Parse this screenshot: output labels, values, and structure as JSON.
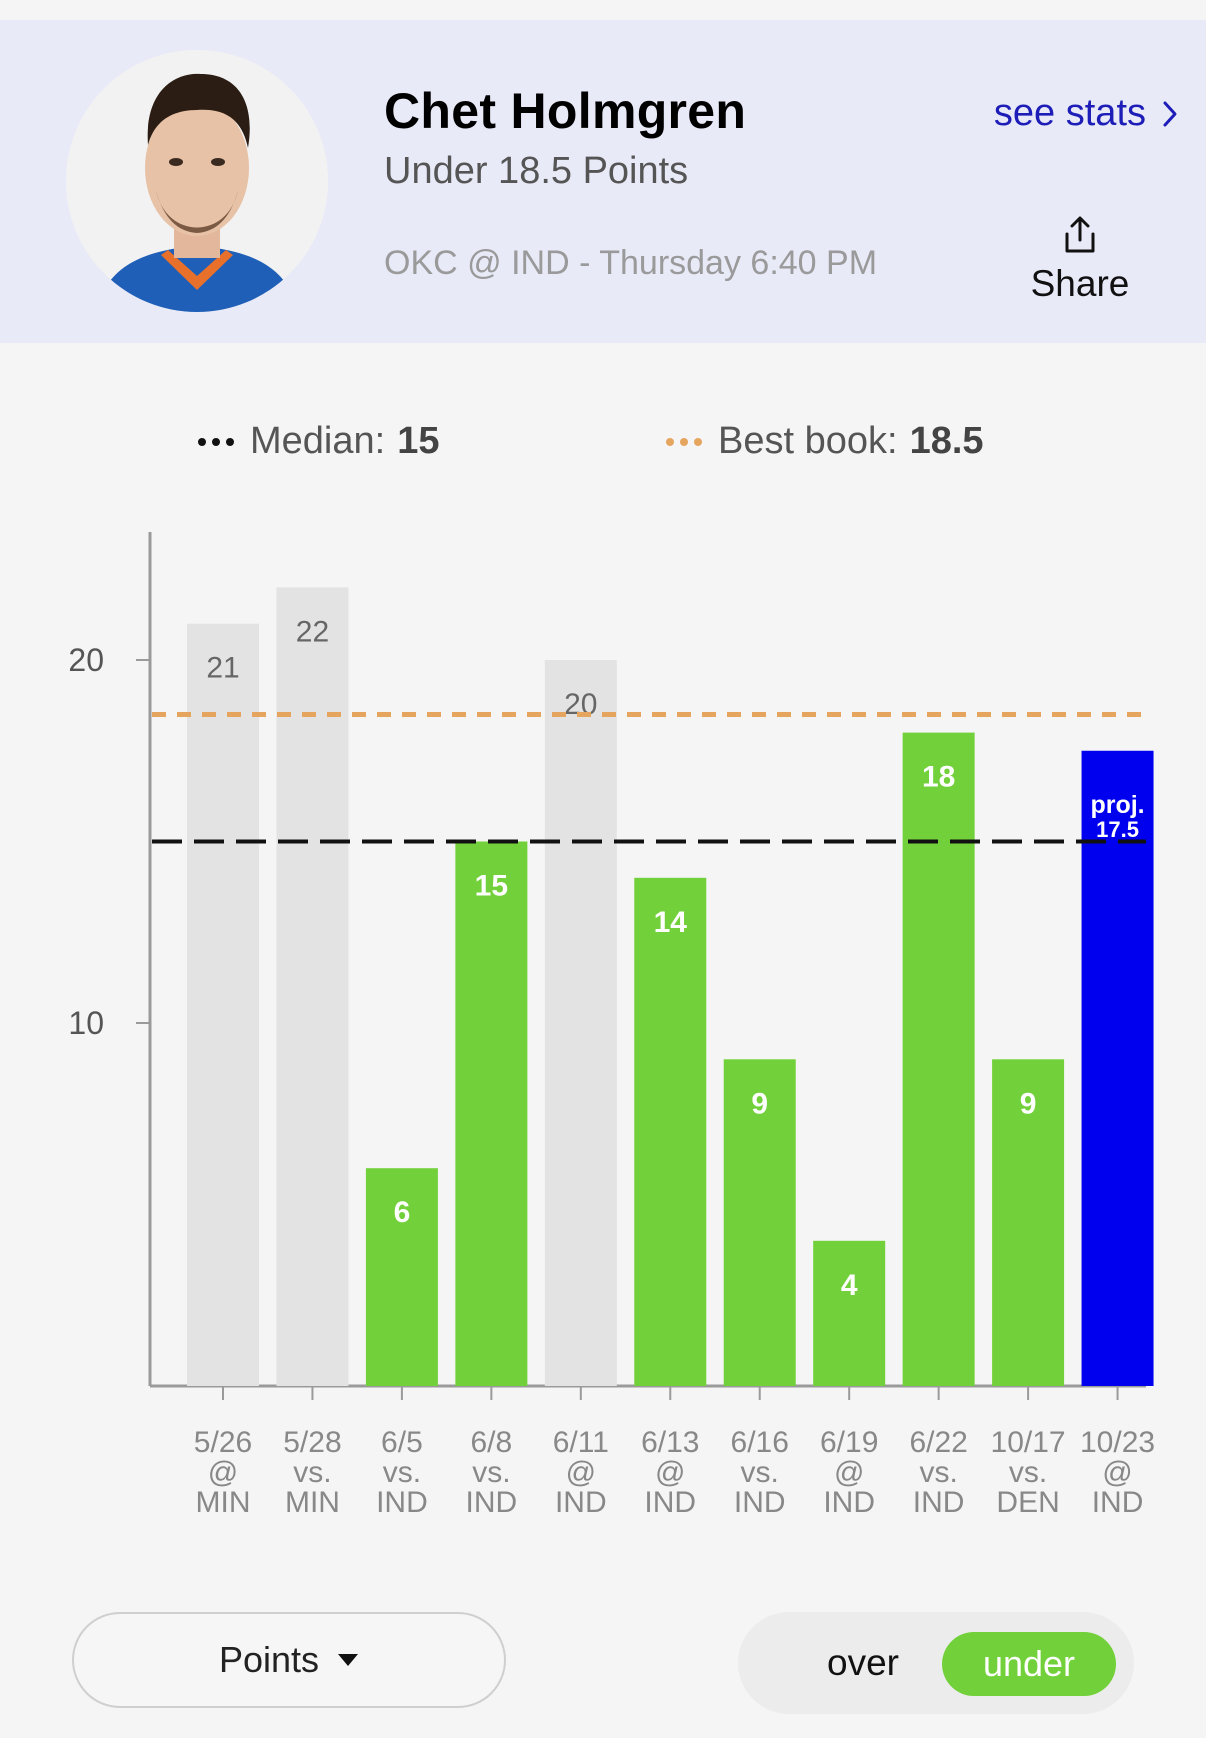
{
  "header": {
    "player_name": "Chet Holmgren",
    "prop_line": "Under 18.5 Points",
    "game_info": "OKC @ IND - Thursday 6:40 PM",
    "see_stats_label": "see stats",
    "share_label": "Share"
  },
  "legend": {
    "median_label": "Median:",
    "median_value": "15",
    "best_book_label": "Best book:",
    "best_book_value": "18.5"
  },
  "colors": {
    "hit": "#72d13a",
    "miss": "#e3e3e3",
    "projection": "#0000ee",
    "median_line": "#111111",
    "best_book_line": "#e6a55f",
    "link": "#1d1db8"
  },
  "chart_data": {
    "type": "bar",
    "categories": [
      "5/26 @ MIN",
      "5/28 vs. MIN",
      "6/5 vs. IND",
      "6/8 vs. IND",
      "6/11 @ IND",
      "6/13 @ IND",
      "6/16 vs. IND",
      "6/19 @ IND",
      "6/22 vs. IND",
      "10/17 vs. DEN",
      "10/23 @ IND"
    ],
    "x_dates": [
      "5/26",
      "5/28",
      "6/5",
      "6/8",
      "6/11",
      "6/13",
      "6/16",
      "6/19",
      "6/22",
      "10/17",
      "10/23"
    ],
    "x_venue": [
      "@",
      "vs.",
      "vs.",
      "vs.",
      "@",
      "@",
      "vs.",
      "@",
      "vs.",
      "vs.",
      "@"
    ],
    "x_opponent": [
      "MIN",
      "MIN",
      "IND",
      "IND",
      "IND",
      "IND",
      "IND",
      "IND",
      "IND",
      "DEN",
      "IND"
    ],
    "values": [
      21,
      22,
      6,
      15,
      20,
      14,
      9,
      4,
      18,
      9,
      17.5
    ],
    "bar_labels": [
      "21",
      "22",
      "6",
      "15",
      "20",
      "14",
      "9",
      "4",
      "18",
      "9",
      "17.5"
    ],
    "status": [
      "over",
      "over",
      "under",
      "under",
      "over",
      "under",
      "under",
      "under",
      "under",
      "under",
      "projection"
    ],
    "projection_prefix": "proj.",
    "reference_lines": [
      {
        "name": "Median",
        "value": 15,
        "style": "dashed"
      },
      {
        "name": "Best book",
        "value": 18.5,
        "style": "dotted"
      }
    ],
    "yticks": [
      10,
      20
    ],
    "ylim": [
      0,
      23.5
    ],
    "title": "",
    "xlabel": "",
    "ylabel": ""
  },
  "controls": {
    "metric_select": "Points",
    "toggle": {
      "over": "over",
      "under": "under",
      "selected": "under"
    }
  }
}
